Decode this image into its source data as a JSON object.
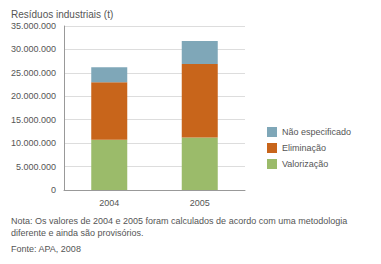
{
  "chart_data": {
    "type": "bar",
    "stacked": true,
    "y_label": "Resíduos industriais (t)",
    "categories": [
      "2004",
      "2005"
    ],
    "series": [
      {
        "name": "Valorização",
        "color": "#9bbb6a",
        "values": [
          10700000,
          11200000
        ]
      },
      {
        "name": "Eliminação",
        "color": "#c8651b",
        "values": [
          12300000,
          15700000
        ]
      },
      {
        "name": "Não especificado",
        "color": "#7fa7b8",
        "values": [
          3200000,
          4900000
        ]
      }
    ],
    "ylim": [
      0,
      35000000
    ],
    "yticks": [
      0,
      {
        "value": 5000000,
        "label": "5.000.000"
      },
      {
        "value": 10000000,
        "label": "10.000.000"
      },
      {
        "value": 15000000,
        "label": "15.000.000"
      },
      {
        "value": 20000000,
        "label": "20.000.000"
      },
      {
        "value": 25000000,
        "label": "25.000.000"
      },
      {
        "value": 30000000,
        "label": "30.000.000"
      },
      {
        "value": 35000000,
        "label": "35.000.000"
      }
    ],
    "grid": true,
    "legend": "right",
    "annotations": [
      "Nota: Os valores de 2004 e 2005 foram calculados de acordo com uma metodologia diferente e ainda são provisórios.",
      "Fonte: APA, 2008"
    ]
  }
}
